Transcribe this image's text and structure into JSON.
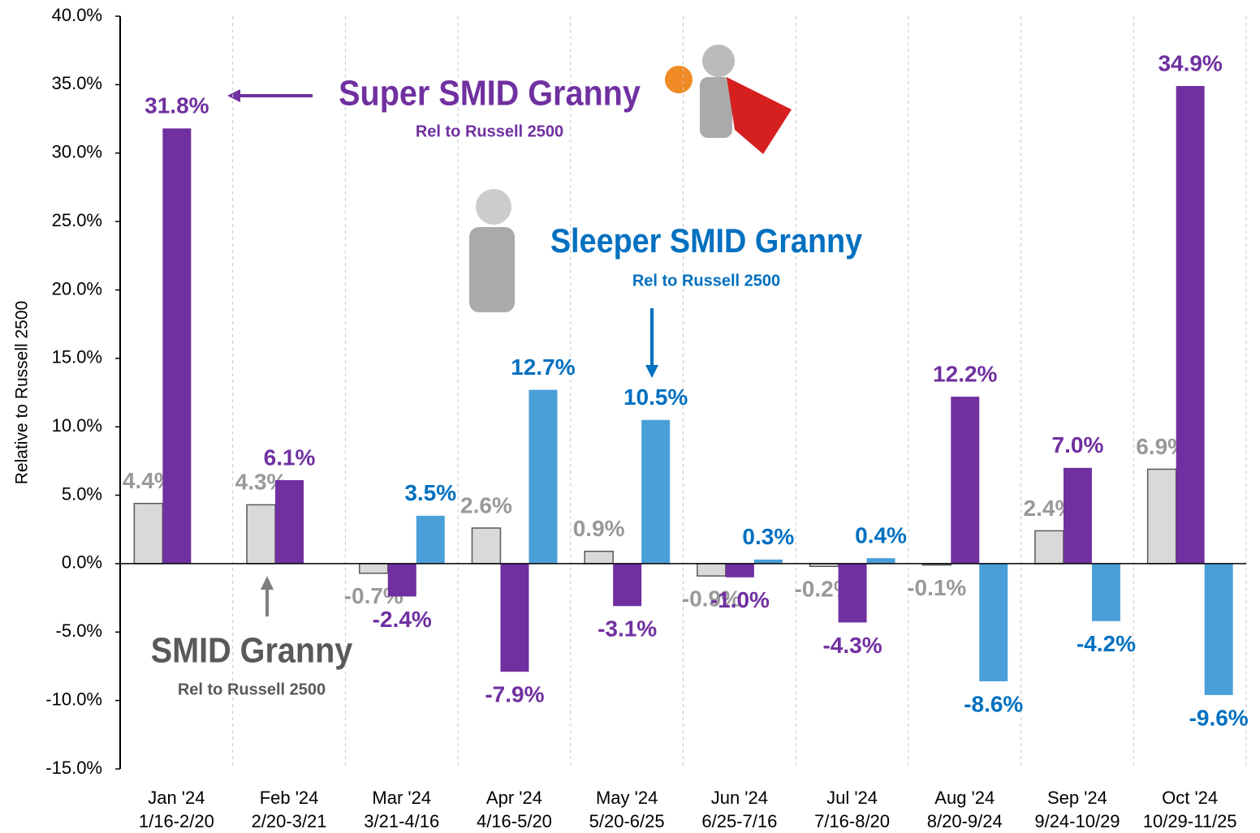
{
  "chart_data": {
    "type": "bar",
    "y_label": "Relative to Russell 2500",
    "categories": [
      "Jan '24",
      "Feb '24",
      "Mar '24",
      "Apr '24",
      "May '24",
      "Jun '24",
      "Jul '24",
      "Aug '24",
      "Sep '24",
      "Oct '24"
    ],
    "date_ranges": [
      "1/16-2/20",
      "2/20-3/21",
      "3/21-4/16",
      "4/16-5/20",
      "5/20-6/25",
      "6/25-7/16",
      "7/16-8/20",
      "8/20-9/24",
      "9/24-10/29",
      "10/29-11/25"
    ],
    "series": [
      {
        "name": "SMID Granny",
        "note": "Rel to Russell 2500",
        "color": "#d9d9d9",
        "label_color": "#999999",
        "title_color": "#595959",
        "values": [
          4.4,
          4.3,
          -0.7,
          2.6,
          0.9,
          -0.9,
          -0.2,
          -0.1,
          2.4,
          6.9
        ],
        "value_labels": [
          "4.4%",
          "4.3%",
          "-0.7%",
          "2.6%",
          "0.9%",
          "-0.9%",
          "-0.2%",
          "-0.1%",
          "2.4%",
          "6.9%"
        ]
      },
      {
        "name": "Super SMID Granny",
        "note": "Rel to Russell 2500",
        "color": "#7030a0",
        "label_color": "#7030a0",
        "title_color": "#7030a0",
        "values": [
          31.8,
          6.1,
          -2.4,
          -7.9,
          -3.1,
          -1.0,
          -4.3,
          12.2,
          7.0,
          34.9
        ],
        "value_labels": [
          "31.8%",
          "6.1%",
          "-2.4%",
          "-7.9%",
          "-3.1%",
          "-1.0%",
          "-4.3%",
          "12.2%",
          "7.0%",
          "34.9%"
        ]
      },
      {
        "name": "Sleeper SMID Granny",
        "note": "Rel to Russell 2500",
        "color": "#4a9fd8",
        "label_color": "#0070c0",
        "title_color": "#0070c0",
        "values": [
          null,
          null,
          3.5,
          12.7,
          10.5,
          0.3,
          0.4,
          -8.6,
          -4.2,
          -9.6
        ],
        "value_labels": [
          null,
          null,
          "3.5%",
          "12.7%",
          "10.5%",
          "0.3%",
          "0.4%",
          "-8.6%",
          "-4.2%",
          "-9.6%"
        ]
      }
    ],
    "ylim": [
      -15,
      40
    ],
    "yticks": [
      {
        "value": -15,
        "label": "-15.0%"
      },
      {
        "value": -10,
        "label": "-10.0%"
      },
      {
        "value": -5,
        "label": "-5.0%"
      },
      {
        "value": 0,
        "label": "0.0%"
      },
      {
        "value": 5,
        "label": "5.0%"
      },
      {
        "value": 10,
        "label": "10.0%"
      },
      {
        "value": 15,
        "label": "15.0%"
      },
      {
        "value": 20,
        "label": "20.0%"
      },
      {
        "value": 25,
        "label": "25.0%"
      },
      {
        "value": 30,
        "label": "30.0%"
      },
      {
        "value": 35,
        "label": "35.0%"
      },
      {
        "value": 40,
        "label": "40.0%"
      }
    ]
  }
}
